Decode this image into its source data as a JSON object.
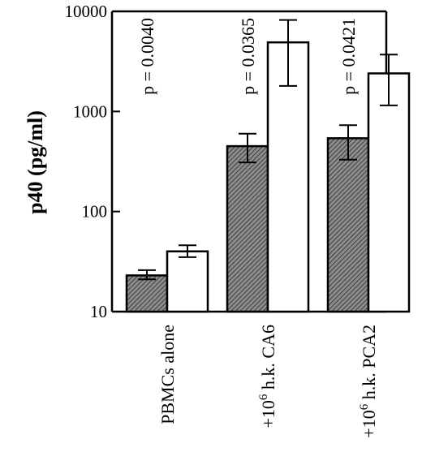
{
  "chart_data": {
    "type": "bar",
    "ylabel": "p40 (pg/ml)",
    "y_scale": "log",
    "ylim": [
      10,
      10000
    ],
    "y_ticks": [
      {
        "value": 10,
        "label": "10"
      },
      {
        "value": 100,
        "label": "100"
      },
      {
        "value": 1000,
        "label": "1000"
      },
      {
        "value": 10000,
        "label": "10000"
      }
    ],
    "categories": [
      {
        "main": "PBMCs alone",
        "pre": "",
        "sup": "",
        "post": ""
      },
      {
        "main": "",
        "pre": "+10",
        "sup": "6",
        "post": " h.k. CA6"
      },
      {
        "main": "",
        "pre": "+10",
        "sup": "6",
        "post": " h.k. PCA2"
      }
    ],
    "p_values": [
      "p = 0.0040",
      "p = 0.0365",
      "p = 0.0421"
    ],
    "series": [
      {
        "style": "hatched",
        "values": [
          23,
          450,
          540
        ],
        "err_low": [
          21,
          310,
          330
        ],
        "err_high": [
          26,
          600,
          730
        ]
      },
      {
        "style": "open",
        "values": [
          40,
          4900,
          2400
        ],
        "err_low": [
          35,
          1800,
          1150
        ],
        "err_high": [
          46,
          8200,
          3700
        ]
      }
    ]
  }
}
